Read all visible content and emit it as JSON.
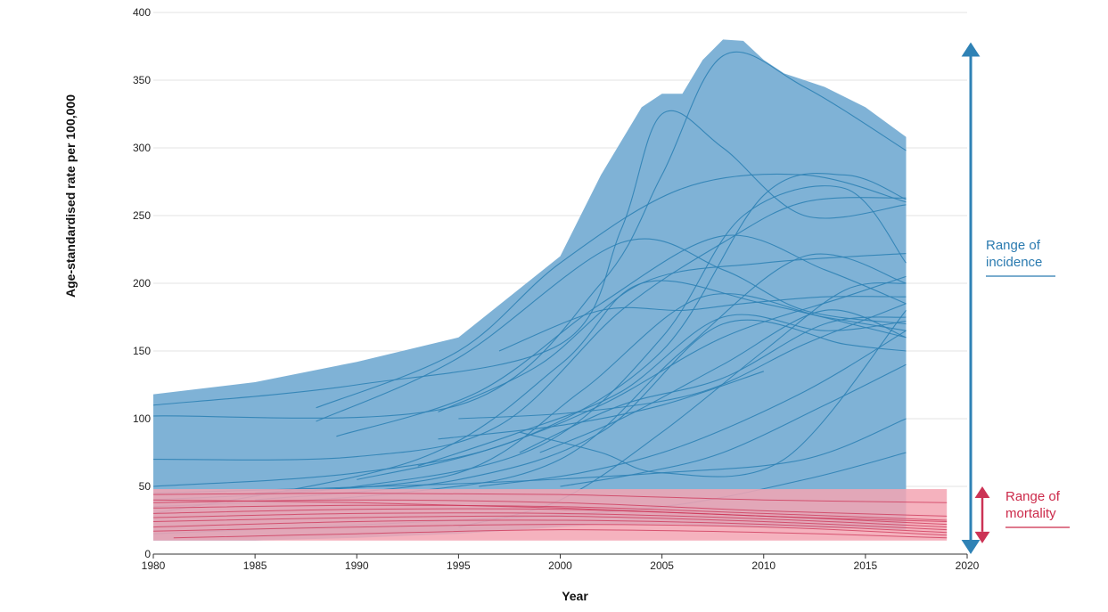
{
  "chart_data": {
    "type": "area",
    "title": "",
    "xlabel": "Year",
    "ylabel": "Age-standardised rate per 100,000",
    "xlim": [
      1980,
      2020
    ],
    "ylim": [
      0,
      400
    ],
    "x_ticks": [
      1980,
      1985,
      1990,
      1995,
      2000,
      2005,
      2010,
      2015,
      2020
    ],
    "y_ticks": [
      0,
      50,
      100,
      150,
      200,
      250,
      300,
      350,
      400
    ],
    "grid": true,
    "colors": {
      "incidence_fill": "#7fb2d6",
      "incidence_line": "#2f82b5",
      "mortality_fill": "#f3a5b3",
      "mortality_line": "#cc3355",
      "incidence_label": "#2b7bb0",
      "mortality_label": "#cc2a4a",
      "grid": "#e3e3e3",
      "axis": "#333333"
    },
    "incidence_envelope": {
      "x": [
        1980,
        1985,
        1990,
        1995,
        2000,
        2002,
        2004,
        2005,
        2006,
        2007,
        2008,
        2009,
        2010,
        2011,
        2013,
        2015,
        2017
      ],
      "upper": [
        118,
        127,
        142,
        160,
        220,
        280,
        330,
        340,
        340,
        365,
        380,
        379,
        365,
        355,
        345,
        330,
        308
      ],
      "lower": [
        10,
        10,
        12,
        15,
        20,
        22,
        22,
        22,
        22,
        21,
        21,
        20,
        20,
        20,
        19,
        19,
        18
      ]
    },
    "incidence_series": [
      {
        "x": [
          1980,
          1990,
          2000,
          2003,
          2005,
          2008,
          2012,
          2017
        ],
        "y": [
          110,
          125,
          155,
          240,
          325,
          300,
          250,
          258
        ]
      },
      {
        "x": [
          1980,
          1995,
          2002,
          2005,
          2008,
          2012,
          2017
        ],
        "y": [
          102,
          110,
          200,
          280,
          368,
          345,
          298
        ]
      },
      {
        "x": [
          1980,
          1990,
          1997,
          2003,
          2008,
          2012,
          2017
        ],
        "y": [
          70,
          72,
          95,
          180,
          230,
          260,
          263
        ]
      },
      {
        "x": [
          1980,
          1990,
          1998,
          2005,
          2010,
          2014,
          2017
        ],
        "y": [
          50,
          60,
          85,
          150,
          265,
          280,
          262
        ]
      },
      {
        "x": [
          1980,
          1990,
          1999,
          2005,
          2009,
          2014,
          2017
        ],
        "y": [
          40,
          50,
          80,
          160,
          250,
          270,
          215
        ]
      },
      {
        "x": [
          1988,
          1995,
          2000,
          2006,
          2012,
          2017
        ],
        "y": [
          108,
          150,
          215,
          270,
          280,
          260
        ]
      },
      {
        "x": [
          1988,
          1995,
          2003,
          2008,
          2012,
          2017
        ],
        "y": [
          98,
          145,
          230,
          210,
          180,
          170
        ]
      },
      {
        "x": [
          1989,
          1996,
          2002,
          2008,
          2013,
          2017
        ],
        "y": [
          87,
          120,
          185,
          235,
          210,
          185
        ]
      },
      {
        "x": [
          1980,
          1992,
          2000,
          2006,
          2012,
          2017
        ],
        "y": [
          35,
          45,
          70,
          150,
          220,
          200
        ]
      },
      {
        "x": [
          1980,
          1993,
          2000,
          2004,
          2010,
          2017
        ],
        "y": [
          30,
          70,
          140,
          200,
          185,
          160
        ]
      },
      {
        "x": [
          1985,
          1995,
          2001,
          2007,
          2013,
          2017
        ],
        "y": [
          45,
          60,
          120,
          190,
          175,
          165
        ]
      },
      {
        "x": [
          1985,
          1995,
          2002,
          2008,
          2014,
          2017
        ],
        "y": [
          40,
          55,
          90,
          170,
          155,
          150
        ]
      },
      {
        "x": [
          1990,
          1996,
          2002,
          2008,
          2014,
          2017
        ],
        "y": [
          55,
          75,
          110,
          160,
          190,
          205
        ]
      },
      {
        "x": [
          1993,
          1998,
          2003,
          2008,
          2013,
          2017
        ],
        "y": [
          65,
          90,
          120,
          175,
          165,
          172
        ]
      },
      {
        "x": [
          1994,
          1999,
          2004,
          2010,
          2017
        ],
        "y": [
          105,
          140,
          200,
          215,
          222
        ]
      },
      {
        "x": [
          1994,
          2000,
          2005,
          2010
        ],
        "y": [
          85,
          95,
          110,
          135
        ]
      },
      {
        "x": [
          1995,
          2000,
          2005,
          2010,
          2014,
          2017
        ],
        "y": [
          20,
          40,
          90,
          150,
          195,
          200
        ]
      },
      {
        "x": [
          1995,
          2001,
          2007,
          2012,
          2017
        ],
        "y": [
          100,
          105,
          120,
          155,
          185
        ]
      },
      {
        "x": [
          1996,
          2001,
          2006,
          2012,
          2017
        ],
        "y": [
          50,
          60,
          80,
          120,
          165
        ]
      },
      {
        "x": [
          1997,
          2002,
          2006,
          2009,
          2013,
          2017
        ],
        "y": [
          150,
          180,
          180,
          185,
          190,
          190
        ]
      },
      {
        "x": [
          1998,
          2002,
          2005,
          2011,
          2017
        ],
        "y": [
          90,
          75,
          60,
          70,
          180
        ]
      },
      {
        "x": [
          1998,
          2003,
          2008,
          2013,
          2017
        ],
        "y": [
          75,
          110,
          130,
          170,
          175
        ]
      },
      {
        "x": [
          1999,
          2003,
          2008,
          2013,
          2017
        ],
        "y": [
          75,
          100,
          140,
          180,
          160
        ]
      },
      {
        "x": [
          2000,
          2004,
          2008,
          2013,
          2017
        ],
        "y": [
          50,
          60,
          75,
          110,
          140
        ]
      },
      {
        "x": [
          1980,
          1995,
          2005,
          2012,
          2017
        ],
        "y": [
          15,
          25,
          35,
          55,
          75
        ]
      },
      {
        "x": [
          1980,
          1995,
          2005,
          2012,
          2017
        ],
        "y": [
          45,
          52,
          60,
          70,
          100
        ]
      }
    ],
    "mortality_band": {
      "x": [
        1980,
        2019
      ],
      "upper": 48,
      "lower": 10
    },
    "mortality_series": [
      {
        "x": [
          1980,
          1990,
          2000,
          2010,
          2019
        ],
        "y": [
          44,
          45,
          44,
          40,
          38
        ]
      },
      {
        "x": [
          1980,
          1990,
          2000,
          2010,
          2019
        ],
        "y": [
          38,
          40,
          38,
          32,
          28
        ]
      },
      {
        "x": [
          1980,
          1990,
          2000,
          2010,
          2019
        ],
        "y": [
          34,
          36,
          35,
          30,
          25
        ]
      },
      {
        "x": [
          1980,
          1990,
          2000,
          2010,
          2019
        ],
        "y": [
          30,
          33,
          33,
          28,
          22
        ]
      },
      {
        "x": [
          1980,
          1990,
          2000,
          2010,
          2019
        ],
        "y": [
          27,
          30,
          30,
          26,
          20
        ]
      },
      {
        "x": [
          1980,
          1990,
          2000,
          2010,
          2019
        ],
        "y": [
          24,
          27,
          28,
          24,
          18
        ]
      },
      {
        "x": [
          1980,
          1990,
          2000,
          2010,
          2019
        ],
        "y": [
          20,
          24,
          25,
          22,
          16
        ]
      },
      {
        "x": [
          1980,
          1990,
          2000,
          2010,
          2019
        ],
        "y": [
          17,
          20,
          22,
          20,
          14
        ]
      },
      {
        "x": [
          1981,
          1990,
          2000,
          2010,
          2019
        ],
        "y": [
          12,
          15,
          18,
          16,
          12
        ]
      },
      {
        "x": [
          1980,
          1990,
          2000,
          2010,
          2019
        ],
        "y": [
          40,
          38,
          34,
          28,
          24
        ]
      }
    ],
    "annotations": [
      {
        "id": "incidence",
        "text_line1": "Range of",
        "text_line2": "incidence",
        "range": [
          0,
          378
        ]
      },
      {
        "id": "mortality",
        "text_line1": "Range of",
        "text_line2": "mortality",
        "range": [
          8,
          50
        ]
      }
    ]
  }
}
